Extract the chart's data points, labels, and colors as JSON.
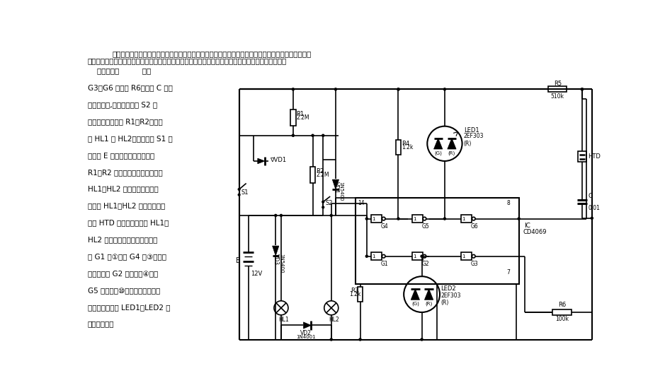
{
  "title1": "汽车制动灯的好坏，直接影响着车辆的安全行驶。目前国产汽车几乎都没有安装制动灯故障监视装置，",
  "title2": "因此由制动灯故障所引发的事故时有发生。这里介绍的监视电路，在制动灯发生故障时，会发出报警。",
  "left_lines": [
    "    电路示于图          非门",
    "G3、G6 和电阵 R6、电容 C 组成",
    "音频振荡器,通常制动开关 S2 处",
    "于断开状态。电阵 R1、R2、制动",
    "灯 HL1 和 HL2、点火开关 S1 及",
    "蓄电池 E 组成通电回路，但由于",
    "R1、R2 的阵値均很大，因而通过",
    "HL1、HL2 的电流是相当微弱",
    "的，故 HL1、HL2 不亮，压电陶",
    "瓷片 HTD 也不发声。由于 HL1、",
    "HL2 的灯丝电阵都很小，使得非",
    "门 G1 的①脚和 G4 的③脚均呈",
    "低电平，则 G2 的输出端④脚和",
    "G5 的输出端⑩脚均为低电平，故",
    "变色发光二极管 LED1、LED2 均",
    "发出绻色光。"
  ],
  "bg": "#ffffff"
}
